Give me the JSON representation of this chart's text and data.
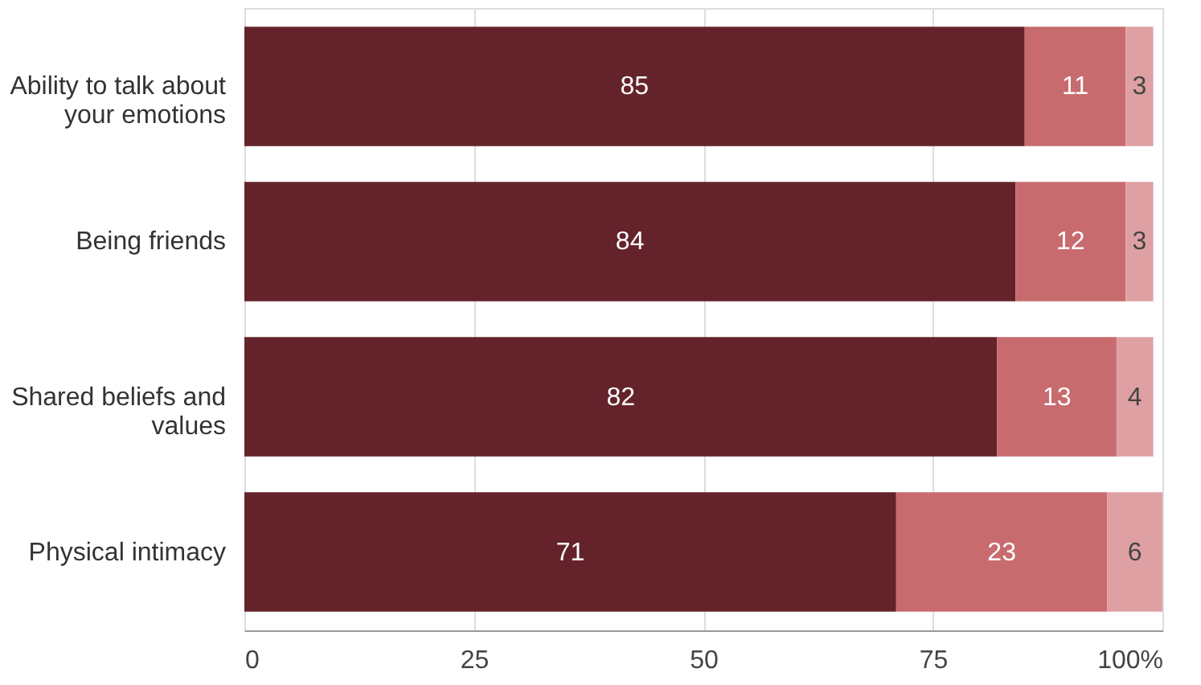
{
  "chart_data": {
    "type": "bar",
    "orientation": "horizontal",
    "stacked": true,
    "categories": [
      "Ability to talk about your emotions",
      "Being friends",
      "Shared beliefs and values",
      "Physical intimacy"
    ],
    "series": [
      {
        "color": "#64232a",
        "values": [
          85,
          84,
          82,
          71
        ]
      },
      {
        "color": "#c86b6e",
        "values": [
          11,
          12,
          13,
          23
        ]
      },
      {
        "color": "#dfa0a3",
        "values": [
          3,
          3,
          4,
          6
        ]
      }
    ],
    "xlim": [
      0,
      100
    ],
    "xticks": [
      0,
      25,
      50,
      75,
      {
        "value": 100,
        "label": "100%"
      }
    ],
    "grid": "x",
    "data_labels": true
  }
}
